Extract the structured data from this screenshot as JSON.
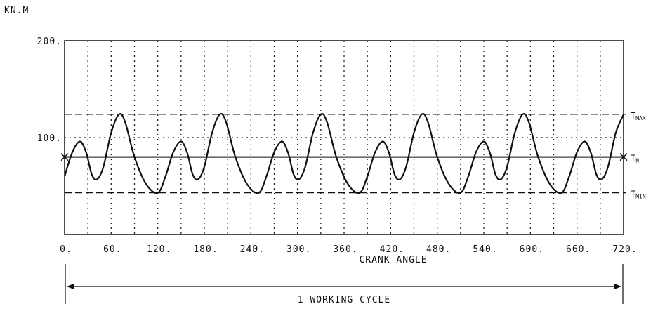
{
  "chart_data": {
    "type": "line",
    "title": "",
    "unit_label": "KN.M",
    "xlabel": "CRANK ANGLE",
    "ylabel": "KN.M",
    "xlim": [
      0,
      720
    ],
    "ylim": [
      0,
      200
    ],
    "x_ticks": [
      0,
      60,
      120,
      180,
      240,
      300,
      360,
      420,
      480,
      540,
      600,
      660,
      720
    ],
    "x_tick_labels": [
      "0.",
      "60.",
      "120.",
      "180.",
      "240.",
      "300.",
      "360.",
      "420.",
      "480.",
      "540.",
      "600.",
      "660.",
      "720."
    ],
    "y_tick_labels": [
      {
        "value": 200,
        "label": "200."
      },
      {
        "value": 100,
        "label": "100."
      }
    ],
    "vertical_gridlines_every_deg": 30,
    "horizontal_gridlines": [
      100
    ],
    "reference_lines": [
      {
        "name": "T_MAX",
        "main": "T",
        "sub": "MAX",
        "value": 124,
        "style": "dashed"
      },
      {
        "name": "T_N",
        "main": "T",
        "sub": "N",
        "value": 80,
        "style": "solid"
      },
      {
        "name": "T_MIN",
        "main": "T",
        "sub": "MIN",
        "value": 43,
        "style": "dashed"
      }
    ],
    "series": [
      {
        "name": "torque",
        "points": [
          [
            0,
            60
          ],
          [
            10,
            85
          ],
          [
            20,
            96
          ],
          [
            28,
            84
          ],
          [
            35,
            62
          ],
          [
            42,
            57
          ],
          [
            50,
            70
          ],
          [
            60,
            105
          ],
          [
            70,
            124
          ],
          [
            78,
            116
          ],
          [
            90,
            80
          ],
          [
            105,
            52
          ],
          [
            120,
            43
          ],
          [
            130,
            60
          ],
          [
            140,
            85
          ],
          [
            150,
            96
          ],
          [
            158,
            84
          ],
          [
            165,
            62
          ],
          [
            172,
            57
          ],
          [
            180,
            70
          ],
          [
            190,
            105
          ],
          [
            200,
            124
          ],
          [
            208,
            116
          ],
          [
            220,
            80
          ],
          [
            235,
            52
          ],
          [
            250,
            43
          ],
          [
            260,
            60
          ],
          [
            270,
            85
          ],
          [
            280,
            96
          ],
          [
            288,
            84
          ],
          [
            295,
            62
          ],
          [
            302,
            57
          ],
          [
            310,
            70
          ],
          [
            320,
            105
          ],
          [
            330,
            124
          ],
          [
            338,
            116
          ],
          [
            350,
            80
          ],
          [
            365,
            52
          ],
          [
            380,
            43
          ],
          [
            390,
            60
          ],
          [
            400,
            85
          ],
          [
            410,
            96
          ],
          [
            418,
            84
          ],
          [
            425,
            62
          ],
          [
            432,
            57
          ],
          [
            440,
            70
          ],
          [
            450,
            105
          ],
          [
            460,
            124
          ],
          [
            468,
            116
          ],
          [
            480,
            80
          ],
          [
            495,
            52
          ],
          [
            510,
            43
          ],
          [
            520,
            60
          ],
          [
            530,
            85
          ],
          [
            540,
            96
          ],
          [
            548,
            84
          ],
          [
            555,
            62
          ],
          [
            562,
            57
          ],
          [
            570,
            70
          ],
          [
            580,
            105
          ],
          [
            590,
            124
          ],
          [
            598,
            116
          ],
          [
            610,
            80
          ],
          [
            625,
            52
          ],
          [
            640,
            43
          ],
          [
            650,
            60
          ],
          [
            660,
            85
          ],
          [
            670,
            96
          ],
          [
            678,
            84
          ],
          [
            685,
            62
          ],
          [
            692,
            57
          ],
          [
            700,
            70
          ],
          [
            710,
            105
          ],
          [
            720,
            124
          ]
        ]
      }
    ],
    "annotation": {
      "text": "1 WORKING CYCLE",
      "from": 0,
      "to": 720
    }
  }
}
